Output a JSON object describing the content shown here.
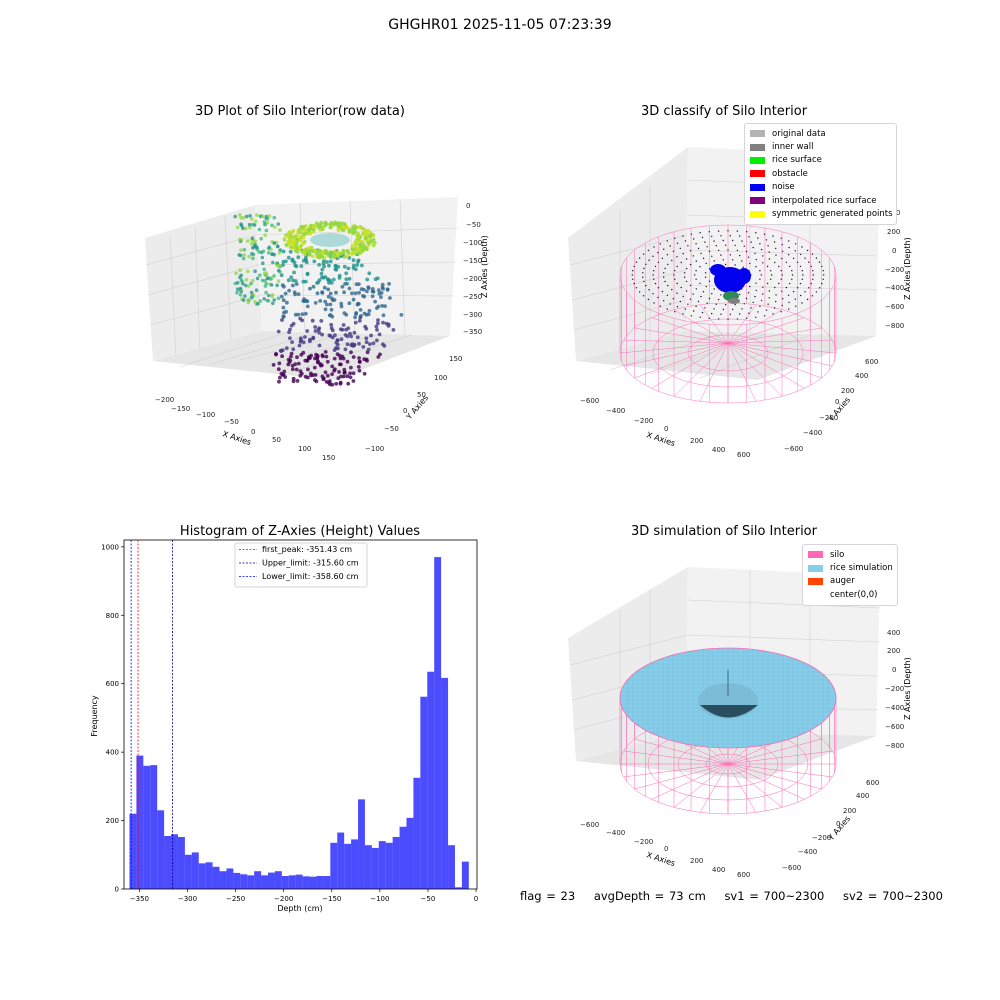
{
  "suptitle": "GHGHR01 2025-11-05 07:23:39",
  "panels": {
    "raw": {
      "title": "3D Plot of Silo Interior(row data)",
      "xlabel": "X Axies",
      "ylabel": "Y Axies",
      "zlabel": "Z Axies (Depth)",
      "xticks": [
        "−200",
        "−150",
        "−100",
        "−50",
        "0",
        "50",
        "100",
        "150"
      ],
      "yticks": [
        "−100",
        "−50",
        "0",
        "50",
        "100",
        "150"
      ],
      "zticks": [
        "0",
        "−50",
        "−100",
        "−150",
        "−200",
        "−250",
        "−300",
        "−350"
      ]
    },
    "classify": {
      "title": "3D classify of Silo Interior",
      "xlabel": "X Axies",
      "ylabel": "Y Axies",
      "zlabel": "Z Axies (Depth)",
      "xticks": [
        "−600",
        "−400",
        "−200",
        "0",
        "200",
        "400",
        "600"
      ],
      "yticks": [
        "−600",
        "−400",
        "−200",
        "0",
        "200",
        "400",
        "600"
      ],
      "zticks": [
        "400",
        "200",
        "0",
        "−200",
        "−400",
        "−600",
        "−800"
      ],
      "legend": [
        {
          "label": "original data",
          "color": "#b3b3b3"
        },
        {
          "label": "inner wall",
          "color": "#808080"
        },
        {
          "label": "rice surface",
          "color": "#00ee00"
        },
        {
          "label": "obstacle",
          "color": "#ff0000"
        },
        {
          "label": "noise",
          "color": "#0000ee"
        },
        {
          "label": "interpolated rice surface",
          "color": "#800080"
        },
        {
          "label": "symmetric generated points",
          "color": "#ffff00"
        }
      ]
    },
    "simulation": {
      "title": "3D simulation of Silo Interior",
      "xlabel": "X Axies",
      "ylabel": "Y Axies",
      "zlabel": "Z Axies (Depth)",
      "xticks": [
        "−600",
        "−400",
        "−200",
        "0",
        "200",
        "400",
        "600"
      ],
      "yticks": [
        "−600",
        "−400",
        "−200",
        "0",
        "200",
        "400",
        "600"
      ],
      "zticks": [
        "400",
        "200",
        "0",
        "−200",
        "−400",
        "−600",
        "−800"
      ],
      "legend": [
        {
          "label": "silo",
          "color": "#ff69b4"
        },
        {
          "label": "rice simulation",
          "color": "#87ceeb"
        },
        {
          "label": "auger",
          "color": "#ff4500"
        },
        {
          "label": "center(0,0)",
          "color": "#ffffff"
        }
      ]
    }
  },
  "chart_data": {
    "type": "bar",
    "title": "Histogram of Z-Axies (Height) Values",
    "xlabel": "Depth (cm)",
    "ylabel": "Frequency",
    "xlim": [
      -366,
      1
    ],
    "ylim": [
      0,
      1020
    ],
    "xticks": [
      -350,
      -300,
      -250,
      -200,
      -150,
      -100,
      -50,
      0
    ],
    "yticks": [
      0,
      200,
      400,
      600,
      800,
      1000
    ],
    "bar_color": "#0000ff",
    "bin_width": 7.2,
    "bins_start": -360.3,
    "values": [
      220,
      390,
      360,
      362,
      230,
      155,
      160,
      152,
      100,
      107,
      75,
      78,
      65,
      52,
      60,
      47,
      43,
      40,
      52,
      40,
      48,
      52,
      38,
      40,
      42,
      37,
      36,
      38,
      38,
      135,
      165,
      132,
      145,
      262,
      128,
      120,
      140,
      135,
      152,
      182,
      208,
      325,
      562,
      635,
      970,
      617,
      128,
      5,
      80
    ],
    "lines": [
      {
        "label": "first_peak: -351.43 cm",
        "x": -351.43,
        "color": "#ff0000"
      },
      {
        "label": "Upper_limit: -315.60 cm",
        "x": -315.6,
        "color": "#00008b"
      },
      {
        "label": "Lower_limit: -358.60 cm",
        "x": -358.6,
        "color": "#0000ff"
      }
    ]
  },
  "footer": {
    "flag": "flag = 23",
    "avg_depth": "avgDepth = 73 cm",
    "sv1": "sv1 = 700~2300",
    "sv2": "sv2 = 700~2300"
  }
}
